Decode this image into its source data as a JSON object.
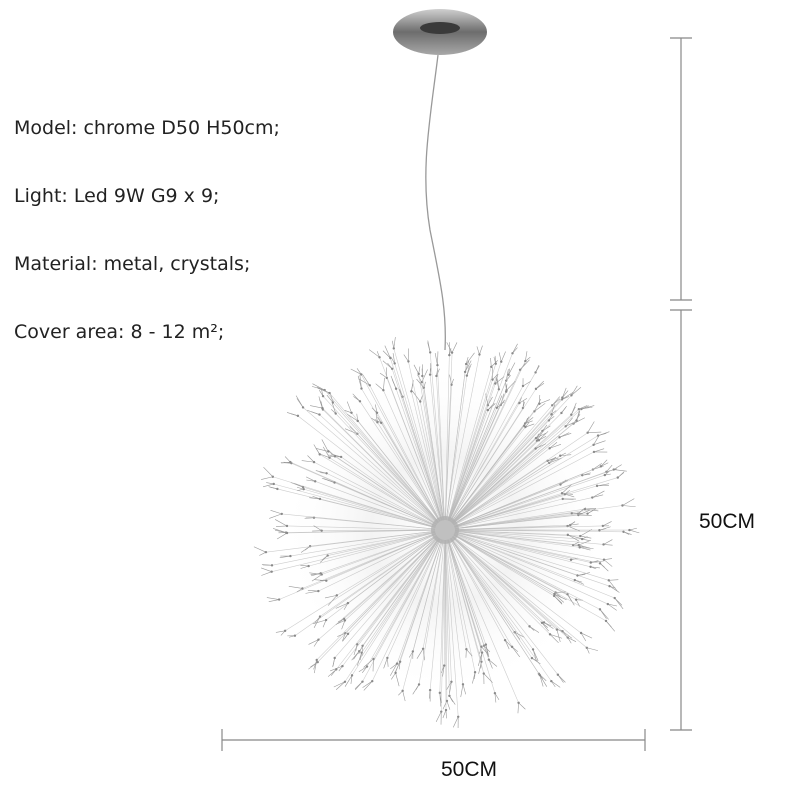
{
  "specs": [
    "Model: chrome D50 H50cm;",
    "Light: Led 9W G9 x 9;",
    "Material: metal, crystals;",
    "Cover area: 8 - 12 m²;"
  ],
  "dimensions": {
    "height": "50CM",
    "width": "50CM"
  }
}
